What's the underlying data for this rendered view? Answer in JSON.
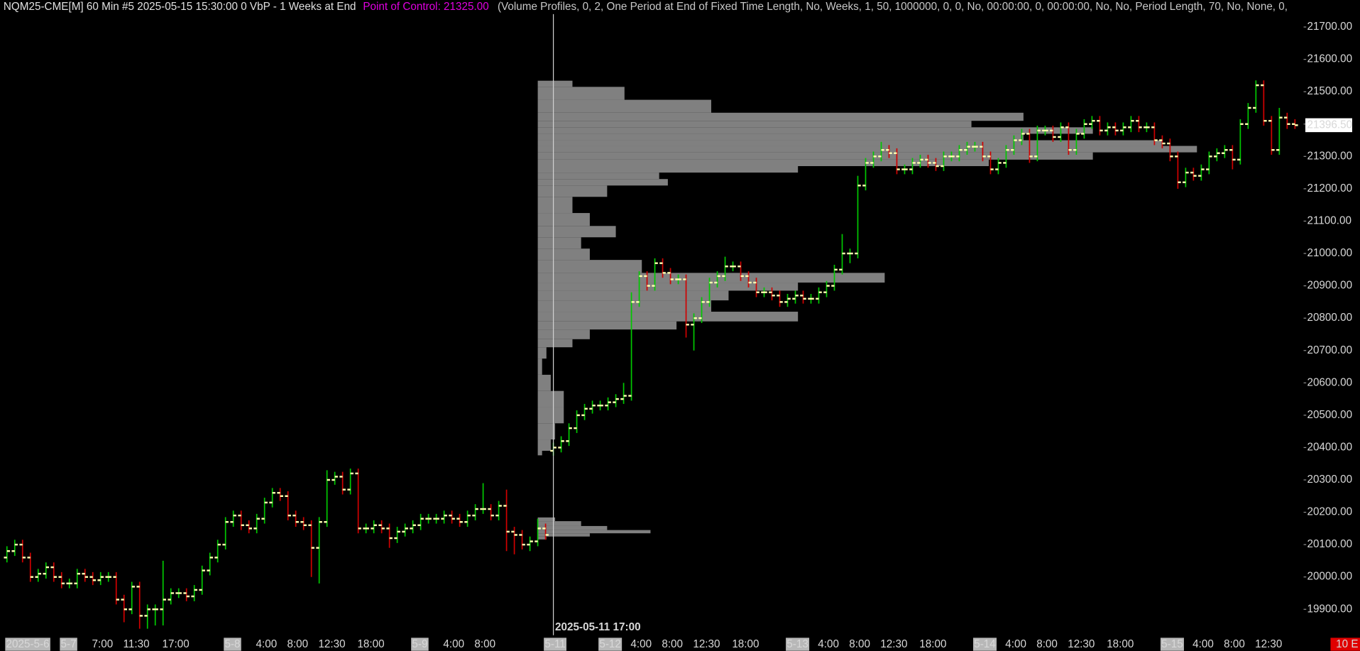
{
  "chart_data": {
    "type": "ohlc",
    "title": "NQM25-CME[M]  60 Min  #5 2025-05-15 15:30:00 0 VbP - 1 Weeks at End",
    "poc_label": "Point of Control: 21325.00",
    "study_params": "(Volume Profiles, 0, 2, One Period at End of Fixed Time Length, No, Weeks, 1, 50, 1000000, 0, 0, No, 00:00:00, 0, 00:00:00, No, No, Period Length, 70, No, None, 0,",
    "cursor_label": "2025-05-11  17:00",
    "status_label": "10 E",
    "last_price": {
      "value": 21396.5,
      "label": "21396.50"
    },
    "up_color": "#00c800",
    "down_color": "#d00000",
    "tick_color": "#ffffb0",
    "ylim": [
      19820,
      21740
    ],
    "yticks": [
      {
        "value": 21700,
        "label": "21700.00"
      },
      {
        "value": 21600,
        "label": "21600.00"
      },
      {
        "value": 21500,
        "label": "21500.00"
      },
      {
        "value": 21400,
        "label": "21400.00"
      },
      {
        "value": 21300,
        "label": "21300.00"
      },
      {
        "value": 21200,
        "label": "21200.00"
      },
      {
        "value": 21100,
        "label": "21100.00"
      },
      {
        "value": 21000,
        "label": "21000.00"
      },
      {
        "value": 20900,
        "label": "20900.00"
      },
      {
        "value": 20800,
        "label": "20800.00"
      },
      {
        "value": 20700,
        "label": "20700.00"
      },
      {
        "value": 20600,
        "label": "20600.00"
      },
      {
        "value": 20500,
        "label": "20500.00"
      },
      {
        "value": 20400,
        "label": "20400.00"
      },
      {
        "value": 20300,
        "label": "20300.00"
      },
      {
        "value": 20200,
        "label": "20200.00"
      },
      {
        "value": 20100,
        "label": "20100.00"
      },
      {
        "value": 20000,
        "label": "20000.00"
      },
      {
        "value": 19900,
        "label": "19900.00"
      }
    ],
    "categories": [
      "2025-5-6",
      null,
      null,
      null,
      null,
      null,
      null,
      "5-7",
      null,
      null,
      null,
      "7:00",
      null,
      null,
      null,
      "11:30",
      null,
      null,
      null,
      null,
      "17:00",
      null,
      null,
      null,
      null,
      null,
      null,
      null,
      "5-8",
      null,
      null,
      null,
      "4:00",
      null,
      null,
      null,
      "8:00",
      null,
      null,
      null,
      "12:30",
      null,
      null,
      null,
      null,
      "18:00",
      null,
      null,
      null,
      null,
      null,
      null,
      "5-9",
      null,
      null,
      null,
      "4:00",
      null,
      null,
      null,
      "8:00",
      null,
      null,
      null,
      null,
      null,
      null,
      null,
      null,
      "5-11",
      null,
      null,
      null,
      null,
      null,
      null,
      "5-12",
      null,
      null,
      null,
      "4:00",
      null,
      null,
      null,
      "8:00",
      null,
      null,
      null,
      "12:30",
      null,
      null,
      null,
      null,
      "18:00",
      null,
      null,
      null,
      null,
      null,
      null,
      "5-13",
      null,
      null,
      null,
      "4:00",
      null,
      null,
      null,
      "8:00",
      null,
      null,
      null,
      "12:30",
      null,
      null,
      null,
      null,
      "18:00",
      null,
      null,
      null,
      null,
      null,
      null,
      "5-14",
      null,
      null,
      null,
      "4:00",
      null,
      null,
      null,
      "8:00",
      null,
      null,
      null,
      "12:30",
      null,
      null,
      null,
      null,
      "18:00",
      null,
      null,
      null,
      null,
      null,
      null,
      "5-15",
      null,
      null,
      null,
      "4:00",
      null,
      null,
      null,
      "8:00",
      null,
      null,
      null,
      "12:30",
      null,
      null,
      null,
      null,
      null
    ],
    "open": [
      20060,
      20080,
      20100,
      20060,
      20000,
      20010,
      20030,
      20000,
      19980,
      19980,
      20010,
      20000,
      19990,
      20000,
      20000,
      19930,
      19900,
      19970,
      19880,
      19900,
      19900,
      19930,
      19950,
      19950,
      19940,
      19960,
      20020,
      20060,
      20100,
      20170,
      20190,
      20160,
      20150,
      20180,
      20230,
      20260,
      20250,
      20190,
      20170,
      20160,
      20090,
      20170,
      20300,
      20310,
      20270,
      20320,
      20150,
      20150,
      20160,
      20150,
      20120,
      20140,
      20150,
      20160,
      20180,
      20180,
      20180,
      20190,
      20180,
      20170,
      20190,
      20210,
      20210,
      20190,
      20220,
      20140,
      20130,
      20100,
      20110,
      20150,
      20390,
      20400,
      20420,
      20460,
      20500,
      20520,
      20530,
      20530,
      20540,
      20550,
      20560,
      20850,
      20930,
      20900,
      20970,
      20940,
      20920,
      20920,
      20780,
      20800,
      20850,
      20910,
      20930,
      20960,
      20960,
      20930,
      20910,
      20880,
      20880,
      20870,
      20850,
      20860,
      20870,
      20860,
      20860,
      20880,
      20900,
      20950,
      21000,
      21000,
      21210,
      21280,
      21300,
      21320,
      21310,
      21260,
      21260,
      21280,
      21290,
      21280,
      21270,
      21300,
      21300,
      21320,
      21330,
      21330,
      21300,
      21260,
      21280,
      21320,
      21350,
      21370,
      21300,
      21380,
      21380,
      21360,
      21390,
      21320,
      21370,
      21400,
      21410,
      21380,
      21390,
      21380,
      21390,
      21410,
      21390,
      21390,
      21350,
      21340,
      21300,
      21220,
      21250,
      21240,
      21260,
      21300,
      21310,
      21320,
      21290,
      21400,
      21450,
      21520,
      21410,
      21320,
      21420,
      21400
    ],
    "high": [
      20095,
      20115,
      20115,
      20075,
      20025,
      20045,
      20045,
      20015,
      19995,
      20025,
      20025,
      20015,
      20015,
      20015,
      20015,
      19945,
      19985,
      19985,
      19915,
      19915,
      20050,
      19965,
      19965,
      19965,
      19975,
      20035,
      20075,
      20115,
      20185,
      20205,
      20205,
      20175,
      20195,
      20245,
      20275,
      20275,
      20265,
      20205,
      20185,
      20175,
      20185,
      20330,
      20325,
      20325,
      20335,
      20335,
      20165,
      20175,
      20175,
      20165,
      20155,
      20165,
      20175,
      20195,
      20195,
      20195,
      20205,
      20205,
      20195,
      20205,
      20225,
      20290,
      20225,
      20235,
      20270,
      20155,
      20145,
      20125,
      20180,
      20165,
      20415,
      20435,
      20475,
      20515,
      20535,
      20545,
      20545,
      20555,
      20565,
      20600,
      20880,
      20945,
      20945,
      20985,
      20985,
      20955,
      20935,
      20935,
      20815,
      20865,
      20925,
      20945,
      20990,
      20975,
      20975,
      20945,
      20925,
      20895,
      20895,
      20885,
      20875,
      20885,
      20885,
      20875,
      20895,
      20915,
      20965,
      21060,
      21015,
      21240,
      21295,
      21315,
      21345,
      21335,
      21325,
      21275,
      21295,
      21305,
      21305,
      21295,
      21315,
      21315,
      21335,
      21345,
      21345,
      21345,
      21315,
      21295,
      21335,
      21365,
      21385,
      21385,
      21395,
      21395,
      21395,
      21405,
      21405,
      21385,
      21415,
      21425,
      21425,
      21405,
      21405,
      21405,
      21425,
      21425,
      21405,
      21405,
      21365,
      21355,
      21315,
      21265,
      21265,
      21275,
      21315,
      21325,
      21335,
      21335,
      21415,
      21465,
      21535,
      21535,
      21425,
      21450,
      21435,
      21415
    ],
    "low": [
      20045,
      20065,
      20045,
      19985,
      19985,
      19995,
      19985,
      19965,
      19965,
      19965,
      19985,
      19975,
      19975,
      19985,
      19915,
      19860,
      19885,
      19840,
      19840,
      19850,
      19850,
      19915,
      19935,
      19925,
      19925,
      19945,
      20005,
      20045,
      20085,
      20155,
      20145,
      20135,
      20135,
      20165,
      20215,
      20235,
      20175,
      20155,
      20145,
      20000,
      19980,
      20155,
      20285,
      20255,
      20255,
      20135,
      20135,
      20135,
      20135,
      20090,
      20105,
      20125,
      20135,
      20145,
      20165,
      20165,
      20165,
      20165,
      20155,
      20155,
      20175,
      20195,
      20175,
      20175,
      20080,
      20070,
      20085,
      20080,
      20095,
      20115,
      20375,
      20385,
      20405,
      20445,
      20485,
      20505,
      20515,
      20515,
      20525,
      20535,
      20545,
      20835,
      20885,
      20885,
      20925,
      20905,
      20905,
      20740,
      20700,
      20785,
      20835,
      20895,
      20915,
      20945,
      20915,
      20895,
      20865,
      20865,
      20855,
      20835,
      20835,
      20845,
      20845,
      20845,
      20845,
      20865,
      20885,
      20935,
      20970,
      20985,
      21195,
      21265,
      21285,
      21295,
      21245,
      21245,
      21245,
      21265,
      21265,
      21255,
      21255,
      21285,
      21285,
      21305,
      21315,
      21285,
      21245,
      21245,
      21265,
      21305,
      21335,
      21280,
      21285,
      21365,
      21345,
      21345,
      21305,
      21305,
      21355,
      21385,
      21365,
      21365,
      21365,
      21365,
      21375,
      21375,
      21375,
      21335,
      21325,
      21285,
      21200,
      21205,
      21225,
      21225,
      21245,
      21285,
      21295,
      21260,
      21275,
      21385,
      21435,
      21395,
      21305,
      21305,
      21385,
      21385
    ],
    "close": [
      20080,
      20100,
      20060,
      20000,
      20010,
      20030,
      20000,
      19980,
      19980,
      20010,
      20000,
      19990,
      20000,
      20000,
      19930,
      19900,
      19970,
      19880,
      19900,
      19900,
      19930,
      19950,
      19950,
      19940,
      19960,
      20020,
      20060,
      20100,
      20170,
      20190,
      20160,
      20150,
      20180,
      20230,
      20260,
      20250,
      20190,
      20170,
      20160,
      20090,
      20170,
      20300,
      20310,
      20270,
      20320,
      20150,
      20150,
      20160,
      20150,
      20120,
      20140,
      20150,
      20160,
      20180,
      20180,
      20180,
      20190,
      20180,
      20170,
      20190,
      20210,
      20210,
      20190,
      20220,
      20140,
      20130,
      20100,
      20110,
      20150,
      20130,
      20400,
      20420,
      20460,
      20500,
      20520,
      20530,
      20530,
      20540,
      20550,
      20560,
      20850,
      20930,
      20900,
      20970,
      20940,
      20920,
      20920,
      20780,
      20800,
      20850,
      20910,
      20930,
      20960,
      20960,
      20930,
      20910,
      20880,
      20880,
      20870,
      20850,
      20860,
      20870,
      20860,
      20860,
      20880,
      20900,
      20950,
      21000,
      21000,
      21210,
      21280,
      21300,
      21320,
      21310,
      21260,
      21260,
      21280,
      21290,
      21280,
      21270,
      21300,
      21300,
      21320,
      21330,
      21330,
      21300,
      21260,
      21280,
      21320,
      21350,
      21370,
      21300,
      21380,
      21380,
      21360,
      21390,
      21320,
      21370,
      21400,
      21410,
      21380,
      21390,
      21380,
      21390,
      21410,
      21390,
      21390,
      21350,
      21340,
      21300,
      21220,
      21250,
      21240,
      21260,
      21300,
      21310,
      21320,
      21290,
      21400,
      21450,
      21520,
      21410,
      21320,
      21420,
      21400,
      21396.5
    ],
    "profiles": [
      {
        "color": "#808080",
        "prices": [
          21530,
          21500,
          21450,
          21420,
          21400,
          21380,
          21360,
          21340,
          21325,
          21300,
          21280,
          21260,
          21240,
          21220,
          21200,
          21150,
          21100,
          21070,
          21030,
          21000,
          20960,
          20920,
          20900,
          20870,
          20840,
          20800,
          20780,
          20750,
          20720,
          20700,
          20650,
          20600,
          20550,
          20500,
          20450,
          20400,
          20380
        ],
        "volumes": [
          40,
          100,
          200,
          560,
          500,
          640,
          560,
          720,
          760,
          640,
          520,
          300,
          140,
          150,
          80,
          40,
          60,
          90,
          50,
          60,
          120,
          400,
          300,
          220,
          200,
          300,
          160,
          60,
          40,
          10,
          5,
          15,
          30,
          30,
          20,
          15,
          5
        ]
      },
      {
        "color": "#808080",
        "prices": [
          20180,
          20165,
          20150,
          20140,
          20130,
          20120
        ],
        "volumes": [
          20,
          50,
          80,
          130,
          60,
          10
        ]
      }
    ]
  }
}
